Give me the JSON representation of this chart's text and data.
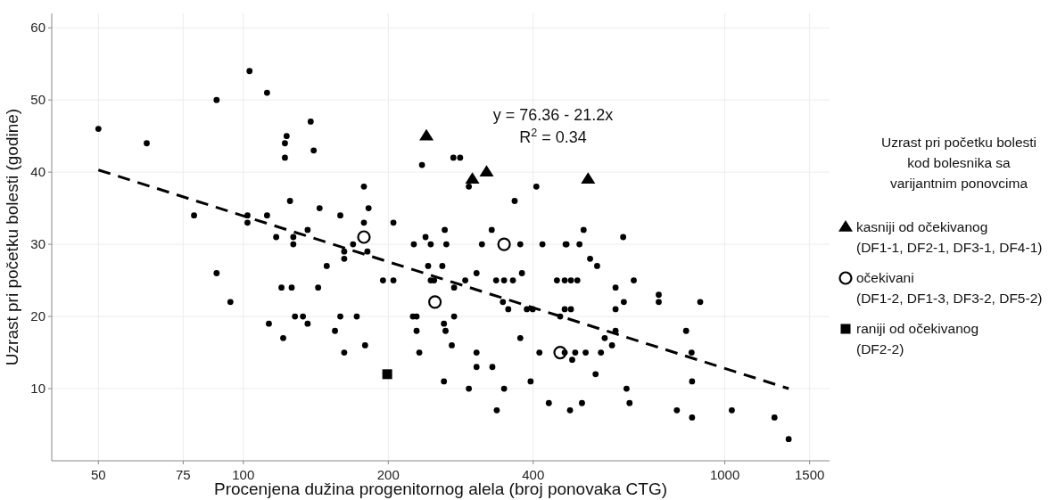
{
  "chart_data": {
    "type": "scatter",
    "xlabel": "Procenjena dužina progenitornog alela (broj ponovaka CTG)",
    "ylabel": "Uzrast pri početku bolesti (godine)",
    "legend_title": "Uzrast pri početku bolesti kod bolesnika sa varijantnim ponovcima",
    "annotations": [
      "y = 76.36 - 21.2x",
      "R$^{2}$ = 0.34"
    ],
    "log": "x",
    "grid": true,
    "legend": "right",
    "xlim": [
      40,
      1650
    ],
    "xticks": [
      50,
      75,
      100,
      200,
      400,
      1000,
      1500
    ],
    "ylim": [
      0,
      62
    ],
    "yticks": [
      10,
      20,
      30,
      40,
      50,
      60
    ],
    "series": [
      {
        "marker": "circle",
        "color": "#000000",
        "x": [
          50,
          63,
          88,
          103,
          112,
          123,
          122,
          122,
          125,
          79,
          102,
          102,
          112,
          117,
          127,
          127,
          88,
          94,
          120,
          126,
          113,
          121,
          128,
          138,
          140,
          235,
          273,
          282,
          294,
          406,
          178,
          366,
          144,
          182,
          159,
          178,
          205,
          136,
          262,
          328,
          239,
          169,
          226,
          245,
          264,
          313,
          376,
          418,
          467,
          162,
          162,
          181,
          149,
          242,
          259,
          305,
          379,
          195,
          205,
          245,
          249,
          289,
          335,
          348,
          363,
          448,
          465,
          143,
          274,
          346,
          355,
          388,
          399,
          465,
          133,
          159,
          172,
          225,
          229,
          274,
          455,
          136,
          261,
          155,
          229,
          263,
          376,
          179,
          271,
          162,
          232,
          305,
          412,
          305,
          329,
          261,
          395,
          294,
          348,
          431,
          336,
          509,
          615,
          469,
          499,
          525,
          543,
          479,
          494,
          647,
          593,
          617,
          593,
          729,
          729,
          889,
          479,
          593,
          831,
          563,
          583,
          465,
          489,
          514,
          553,
          853,
          482,
          539,
          855,
          625,
          634,
          505,
          477,
          795,
          855,
          1034,
          1268,
          1357
        ],
        "values": [
          46,
          44,
          50,
          54,
          51,
          45,
          44,
          42,
          36,
          34,
          34,
          33,
          34,
          31,
          31,
          30,
          26,
          22,
          24,
          24,
          19,
          17,
          20,
          47,
          43,
          41,
          42,
          42,
          38,
          38,
          38,
          36,
          35,
          35,
          34,
          33,
          33,
          32,
          32,
          32,
          31,
          30,
          30,
          30,
          30,
          30,
          30,
          30,
          30,
          29,
          28,
          29,
          27,
          27,
          27,
          26,
          26,
          25,
          25,
          25,
          25,
          25,
          25,
          25,
          25,
          25,
          25,
          24,
          24,
          22,
          21,
          21,
          21,
          21,
          20,
          20,
          20,
          20,
          20,
          20,
          20,
          19,
          19,
          18,
          18,
          18,
          17,
          16,
          16,
          15,
          15,
          15,
          15,
          13,
          13,
          11,
          11,
          10,
          10,
          8,
          7,
          32,
          31,
          30,
          30,
          28,
          27,
          25,
          25,
          25,
          24,
          22,
          21,
          23,
          22,
          22,
          21,
          18,
          18,
          17,
          16,
          15,
          15,
          15,
          15,
          15,
          14,
          12,
          11,
          10,
          8,
          8,
          7,
          7,
          6,
          7,
          6,
          3
        ]
      },
      {
        "type": "line",
        "line_style": "dashed",
        "color": "#000000",
        "x": [
          50,
          1357
        ],
        "values": [
          40.3,
          10
        ]
      },
      {
        "marker": "triangle",
        "name": "kasniji od očekivanog (DF1-1, DF2-1, DF3-1, DF4-1)",
        "color": "#000000",
        "x": [
          240,
          299,
          320,
          520
        ],
        "values": [
          45,
          39,
          40,
          39
        ]
      },
      {
        "marker": "circle",
        "name": "očekivani (DF1-2, DF1-3, DF3-2, DF5-2)",
        "color": "#000000",
        "x": [
          178,
          348,
          250,
          455
        ],
        "values": [
          31,
          30,
          22,
          15
        ]
      },
      {
        "marker": "square",
        "name": "raniji od očekivanog (DF2-2)",
        "color": "#000000",
        "x": [
          199
        ],
        "values": [
          12
        ]
      }
    ]
  }
}
